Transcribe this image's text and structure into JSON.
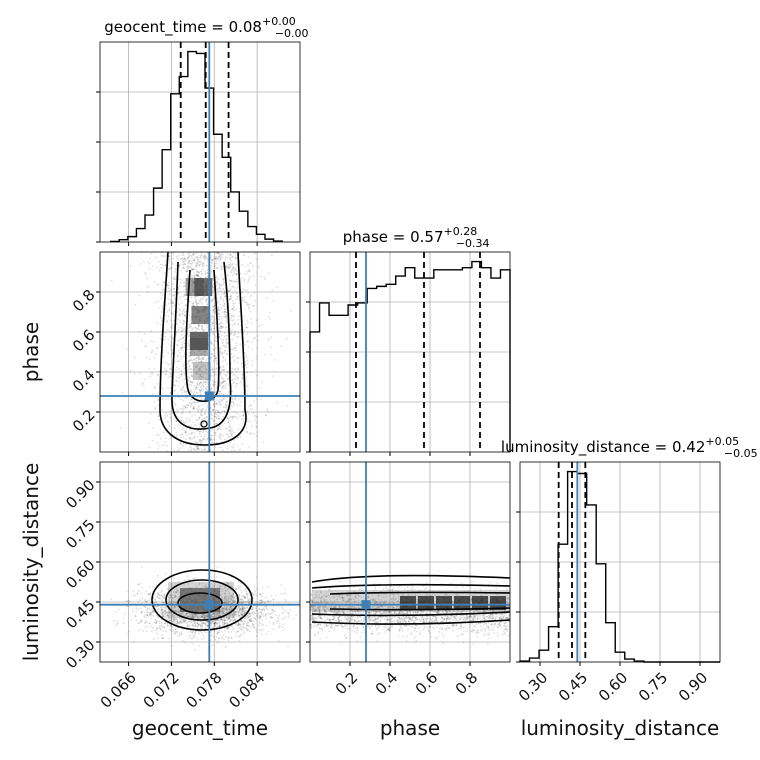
{
  "chart_data": {
    "type": "corner",
    "truth_color": "#3f7fb5",
    "hist_color": "#000000",
    "parameters": [
      {
        "name": "geocent_time",
        "label": "geocent_time",
        "range": [
          0.062,
          0.09
        ],
        "ticks": [
          "0.066",
          "0.072",
          "0.078",
          "0.084"
        ],
        "tick_values": [
          0.066,
          0.072,
          0.078,
          0.084
        ],
        "truth": 0.0773,
        "quantiles": [
          0.0733,
          0.0768,
          0.08
        ],
        "title_median": "0.08",
        "title_plus": "+0.00",
        "title_minus": "−0.00",
        "hist": [
          0.3,
          1.2,
          2.8,
          7,
          14,
          28,
          48,
          77,
          86,
          99,
          98,
          80,
          56,
          44,
          26,
          16,
          8,
          4,
          1.5,
          0.5
        ]
      },
      {
        "name": "phase",
        "label": "phase",
        "range": [
          0.0,
          1.0
        ],
        "ticks": [
          "0.2",
          "0.4",
          "0.6",
          "0.8"
        ],
        "tick_values": [
          0.2,
          0.4,
          0.6,
          0.8
        ],
        "truth": 0.28,
        "quantiles": [
          0.23,
          0.57,
          0.85
        ],
        "title_median": "0.57",
        "title_plus": "+0.28",
        "title_minus": "−0.34",
        "hist": [
          58,
          72,
          66,
          66,
          71,
          72,
          79,
          80,
          81,
          85,
          89,
          84,
          84,
          88,
          88,
          88,
          89,
          92,
          89,
          84,
          88
        ]
      },
      {
        "name": "luminosity_distance",
        "label": "luminosity_distance",
        "range": [
          0.225,
          0.975
        ],
        "ticks": [
          "0.30",
          "0.45",
          "0.60",
          "0.75",
          "0.90"
        ],
        "tick_values": [
          0.3,
          0.45,
          0.6,
          0.75,
          0.9
        ],
        "truth": 0.44,
        "quantiles": [
          0.37,
          0.42,
          0.47
        ],
        "title_median": "0.42",
        "title_plus": "+0.05",
        "title_minus": "−0.05",
        "hist": [
          0.5,
          2,
          6,
          18,
          60,
          97,
          96,
          80,
          50,
          20,
          5,
          1.5,
          0.5,
          0,
          0,
          0,
          0,
          0,
          0,
          0,
          0
        ]
      }
    ]
  }
}
